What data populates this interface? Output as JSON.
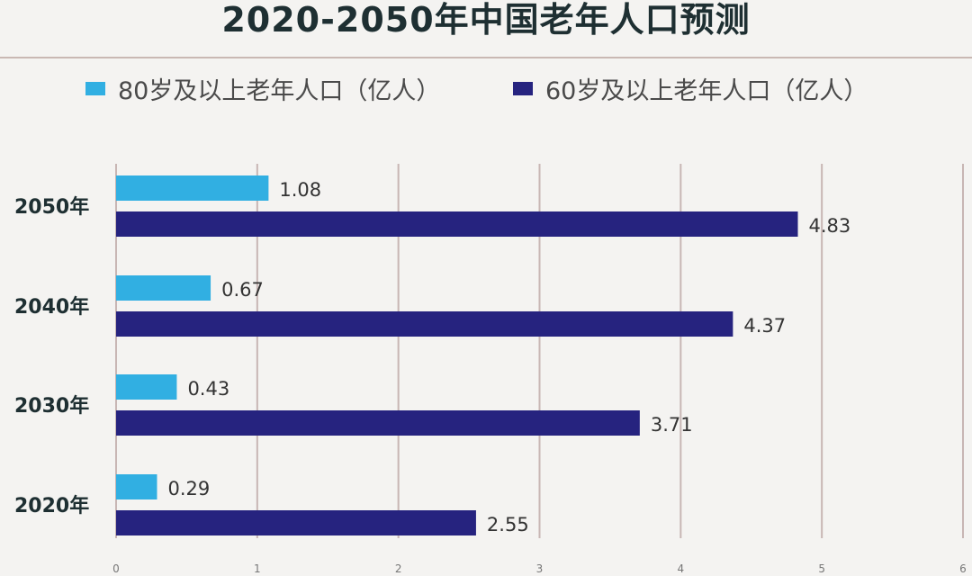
{
  "chart_data": {
    "type": "bar",
    "orientation": "horizontal",
    "title": "2020-2050年中国老年人口预测",
    "categories": [
      "2050年",
      "2040年",
      "2030年",
      "2020年"
    ],
    "series": [
      {
        "name": "80岁及以上老年人口（亿人）",
        "color": "#31afe2",
        "values": [
          1.08,
          0.67,
          0.43,
          0.29
        ]
      },
      {
        "name": "60岁及以上老年人口（亿人）",
        "color": "#26237f",
        "values": [
          4.83,
          4.37,
          3.71,
          2.55
        ]
      }
    ],
    "xlim": [
      0,
      6
    ],
    "xticks": [
      "0",
      "1",
      "2",
      "3",
      "4",
      "5",
      "6"
    ],
    "grid": true,
    "legend_position": "top",
    "xlabel": "",
    "ylabel": ""
  }
}
